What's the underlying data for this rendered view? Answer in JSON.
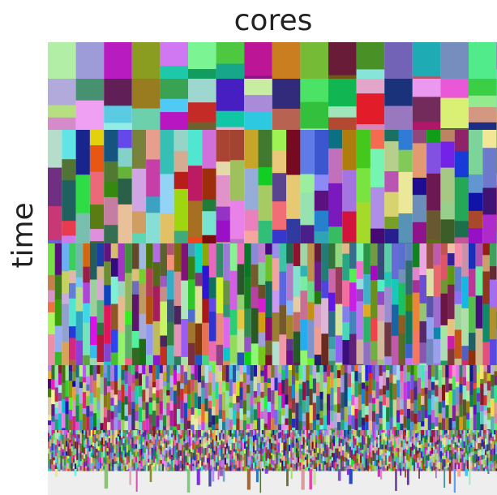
{
  "chart_data": {
    "type": "schedule",
    "xlabel": "cores",
    "ylabel": "time"
  }
}
